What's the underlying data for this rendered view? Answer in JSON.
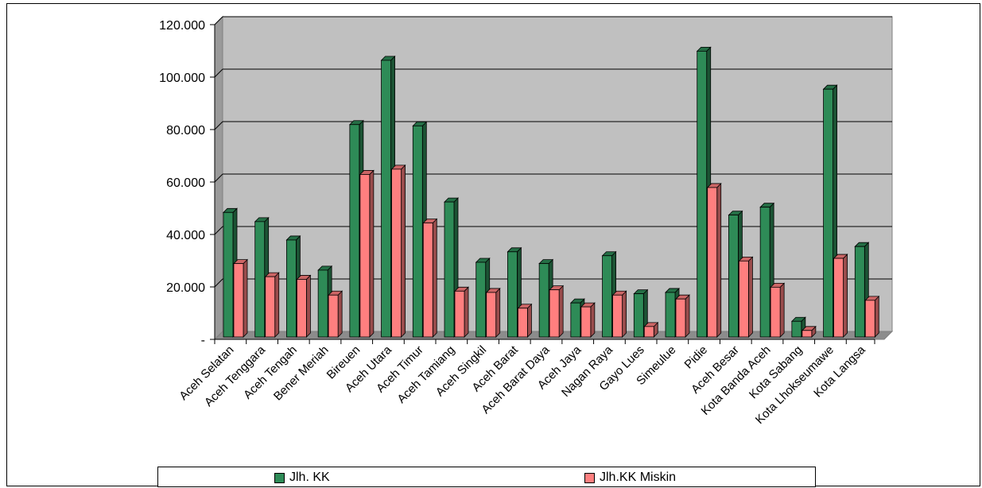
{
  "chart_data": {
    "type": "bar",
    "categories": [
      "Aceh Selatan",
      "Aceh Tenggara",
      "Aceh Tengah",
      "Bener Meriah",
      "Bireuen",
      "Aceh Utara",
      "Aceh Timur",
      "Aceh Tamiang",
      "Aceh Singkil",
      "Aceh Barat",
      "Aceh Barat Daya",
      "Aceh Jaya",
      "Nagan Raya",
      "Gayo Lues",
      "Simeulue",
      "Pidie",
      "Aceh Besar",
      "Kota Banda Aceh",
      "Kota Sabang",
      "Kota Lhokseumawe",
      "Kota Langsa"
    ],
    "series": [
      {
        "name": "Jlh. KK",
        "color": "#2e8b57",
        "values": [
          49000,
          45500,
          38500,
          27000,
          82500,
          107000,
          82000,
          53000,
          30000,
          34000,
          29500,
          14500,
          32500,
          18000,
          18500,
          110500,
          48000,
          51000,
          7500,
          96000,
          36000
        ]
      },
      {
        "name": "Jlh.KK Miskin",
        "color": "#ff7f7f",
        "values": [
          29500,
          24500,
          23500,
          17500,
          63500,
          65500,
          45000,
          19000,
          18500,
          12500,
          19500,
          13000,
          17500,
          5500,
          16000,
          58500,
          30500,
          20500,
          4000,
          31500,
          15500
        ]
      }
    ],
    "y_ticks": [
      "-",
      "20.000",
      "40.000",
      "60.000",
      "80.000",
      "100.000",
      "120.000"
    ],
    "ylim": [
      0,
      120000
    ],
    "grid": true,
    "legend_position": "bottom",
    "title": "",
    "xlabel": "",
    "ylabel": ""
  }
}
